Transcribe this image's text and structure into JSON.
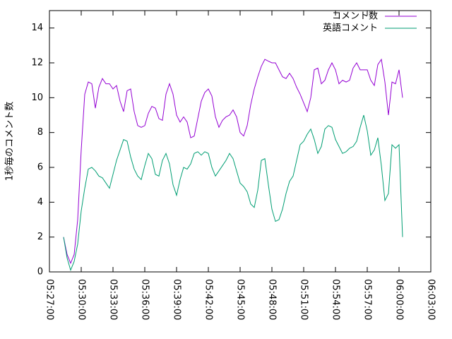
{
  "chart_data": {
    "type": "line",
    "y_label": "1秒毎のコメント数",
    "x": [
      "05:28:20",
      "05:28:40",
      "05:29:00",
      "05:29:20",
      "05:29:40",
      "05:30:00",
      "05:30:20",
      "05:30:40",
      "05:31:00",
      "05:31:20",
      "05:31:40",
      "05:32:00",
      "05:32:20",
      "05:32:40",
      "05:33:00",
      "05:33:20",
      "05:33:40",
      "05:34:00",
      "05:34:20",
      "05:34:40",
      "05:35:00",
      "05:35:20",
      "05:35:40",
      "05:36:00",
      "05:36:20",
      "05:36:40",
      "05:37:00",
      "05:37:20",
      "05:37:40",
      "05:38:00",
      "05:38:20",
      "05:38:40",
      "05:39:00",
      "05:39:20",
      "05:39:40",
      "05:40:00",
      "05:40:20",
      "05:40:40",
      "05:41:00",
      "05:41:20",
      "05:41:40",
      "05:42:00",
      "05:42:20",
      "05:42:40",
      "05:43:00",
      "05:43:20",
      "05:43:40",
      "05:44:00",
      "05:44:20",
      "05:44:40",
      "05:45:00",
      "05:45:20",
      "05:45:40",
      "05:46:00",
      "05:46:20",
      "05:46:40",
      "05:47:00",
      "05:47:20",
      "05:47:40",
      "05:48:00",
      "05:48:20",
      "05:48:40",
      "05:49:00",
      "05:49:20",
      "05:49:40",
      "05:50:00",
      "05:50:20",
      "05:50:40",
      "05:51:00",
      "05:51:20",
      "05:51:40",
      "05:52:00",
      "05:52:20",
      "05:52:40",
      "05:53:00",
      "05:53:20",
      "05:53:40",
      "05:54:00",
      "05:54:20",
      "05:54:40",
      "05:55:00",
      "05:55:20",
      "05:55:40",
      "05:56:00",
      "05:56:20",
      "05:56:40",
      "05:57:00",
      "05:57:20",
      "05:57:40",
      "05:58:00",
      "05:58:20",
      "05:58:40",
      "05:59:00",
      "05:59:20",
      "05:59:40",
      "06:00:00",
      "06:00:20"
    ],
    "series": [
      {
        "name": "コメント数",
        "color": "#9400d3",
        "values": [
          2.0,
          1.0,
          0.5,
          1.0,
          3.0,
          7.0,
          10.2,
          10.9,
          10.8,
          9.4,
          10.6,
          11.1,
          10.8,
          10.8,
          10.5,
          10.7,
          9.8,
          9.2,
          10.4,
          10.5,
          9.2,
          8.4,
          8.3,
          8.4,
          9.1,
          9.5,
          9.4,
          8.8,
          8.7,
          10.2,
          10.8,
          10.2,
          9.0,
          8.6,
          8.9,
          8.6,
          7.7,
          7.8,
          8.8,
          9.8,
          10.3,
          10.5,
          10.1,
          8.9,
          8.3,
          8.7,
          8.9,
          9.0,
          9.3,
          8.9,
          8.0,
          7.8,
          8.4,
          9.6,
          10.5,
          11.2,
          11.8,
          12.2,
          12.1,
          12.0,
          12.0,
          11.6,
          11.2,
          11.1,
          11.4,
          11.1,
          10.6,
          10.2,
          9.7,
          9.2,
          10.0,
          11.6,
          11.7,
          10.8,
          11.0,
          11.6,
          12.0,
          11.6,
          10.8,
          11.0,
          10.9,
          11.0,
          11.7,
          12.0,
          11.6,
          11.6,
          11.6,
          11.0,
          10.7,
          11.9,
          12.2,
          10.9,
          9.0,
          10.9,
          10.8,
          11.6,
          10.0
        ]
      },
      {
        "name": "英語コメント",
        "color": "#009e73",
        "values": [
          2.0,
          0.8,
          0.1,
          0.6,
          1.6,
          3.5,
          4.8,
          5.9,
          6.0,
          5.8,
          5.5,
          5.4,
          5.1,
          4.8,
          5.6,
          6.4,
          7.0,
          7.6,
          7.5,
          6.6,
          5.9,
          5.5,
          5.3,
          6.1,
          6.8,
          6.5,
          5.6,
          5.5,
          6.4,
          6.8,
          6.2,
          5.0,
          4.4,
          5.3,
          6.0,
          5.9,
          6.2,
          6.8,
          6.9,
          6.7,
          6.9,
          6.8,
          6.0,
          5.5,
          5.8,
          6.1,
          6.4,
          6.8,
          6.5,
          5.8,
          5.1,
          4.9,
          4.6,
          3.9,
          3.7,
          4.7,
          6.4,
          6.5,
          5.0,
          3.6,
          2.9,
          3.0,
          3.6,
          4.5,
          5.2,
          5.5,
          6.4,
          7.3,
          7.5,
          7.9,
          8.2,
          7.6,
          6.8,
          7.2,
          8.2,
          8.4,
          8.3,
          7.6,
          7.2,
          6.8,
          6.9,
          7.1,
          7.2,
          7.5,
          8.3,
          9.0,
          8.1,
          6.7,
          7.0,
          7.7,
          6.1,
          4.1,
          4.5,
          7.3,
          7.1,
          7.3,
          2.0
        ]
      }
    ],
    "xlim": [
      "05:27:00",
      "06:03:00"
    ],
    "xticks": [
      "05:27:00",
      "05:30:00",
      "05:33:00",
      "05:36:00",
      "05:39:00",
      "05:42:00",
      "05:45:00",
      "05:48:00",
      "05:51:00",
      "05:54:00",
      "05:57:00",
      "06:00:00",
      "06:03:00"
    ],
    "ylim": [
      0,
      15
    ],
    "yticks": [
      0,
      2,
      4,
      6,
      8,
      10,
      12,
      14
    ],
    "legend": "top-right"
  }
}
